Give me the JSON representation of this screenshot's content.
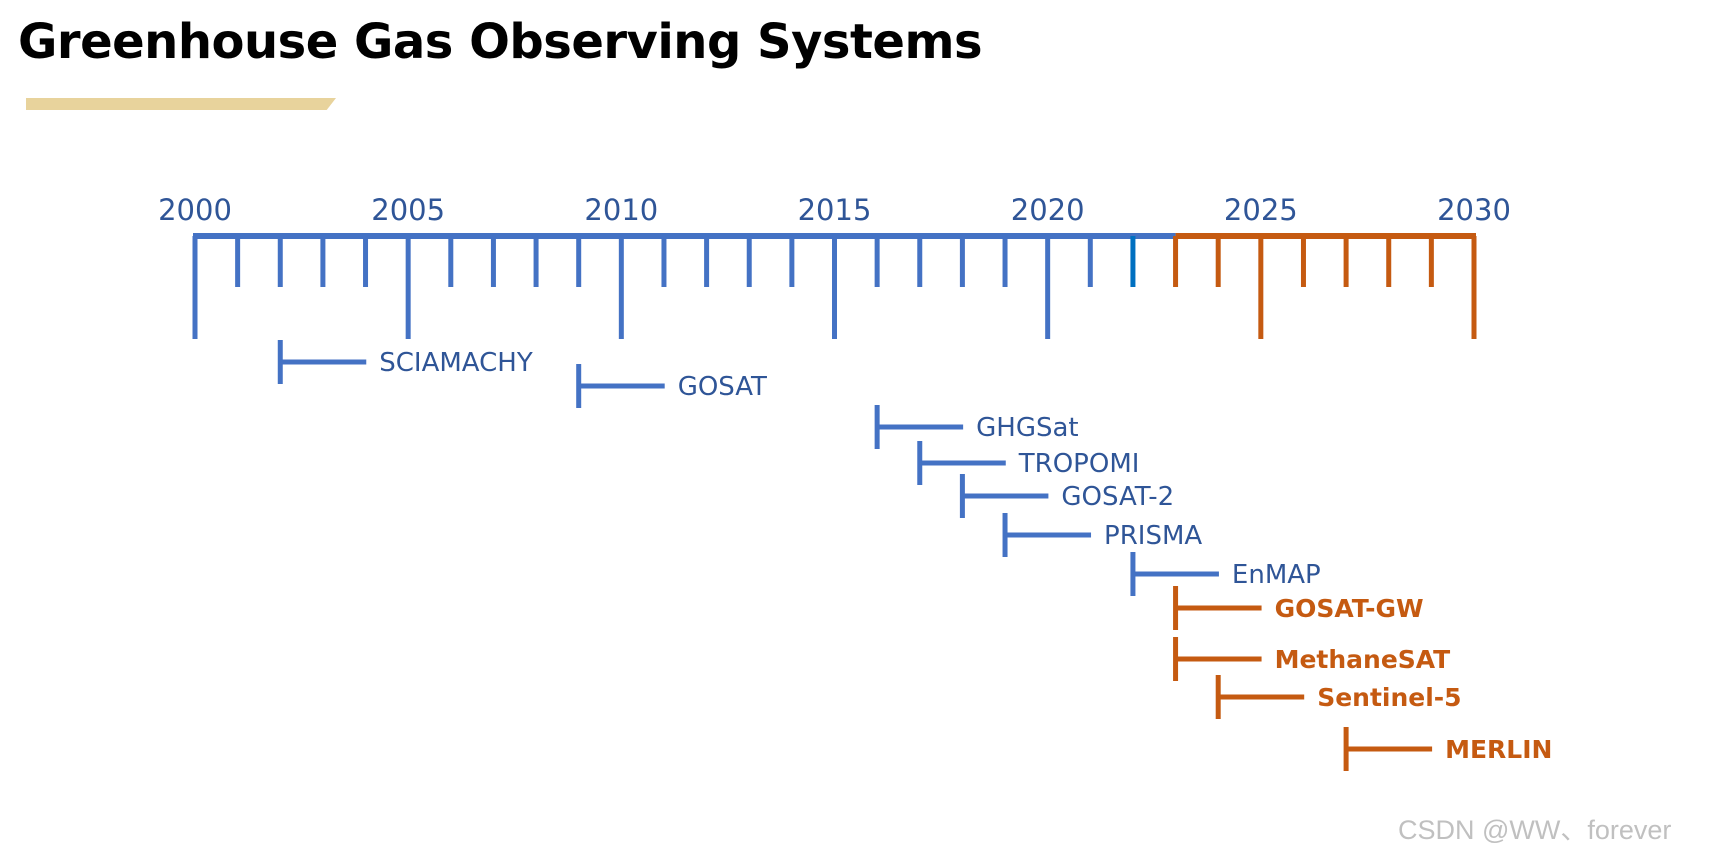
{
  "title": "Greenhouse Gas Observing Systems",
  "watermark": "CSDN @WW、forever",
  "colors": {
    "past": "#4472c4",
    "future": "#c55a11",
    "current_tick": "#0070c0",
    "title_underline": "#e8d39c"
  },
  "axis": {
    "start_year": 2000,
    "end_year": 2030,
    "future_from_year": 2023,
    "major_labels": [
      "2000",
      "2005",
      "2010",
      "2015",
      "2020",
      "2025",
      "2030"
    ],
    "current_year": 2022
  },
  "missions": [
    {
      "name": "SCIAMACHY",
      "start_year": 2002,
      "status": "past"
    },
    {
      "name": "GOSAT",
      "start_year": 2009,
      "status": "past"
    },
    {
      "name": "GHGSat",
      "start_year": 2016,
      "status": "past"
    },
    {
      "name": "TROPOMI",
      "start_year": 2017,
      "status": "past"
    },
    {
      "name": "GOSAT-2",
      "start_year": 2018,
      "status": "past"
    },
    {
      "name": "PRISMA",
      "start_year": 2019,
      "status": "past"
    },
    {
      "name": "EnMAP",
      "start_year": 2022,
      "status": "past"
    },
    {
      "name": "GOSAT-GW",
      "start_year": 2023,
      "status": "future"
    },
    {
      "name": "MethaneSAT",
      "start_year": 2023,
      "status": "future"
    },
    {
      "name": "Sentinel-5",
      "start_year": 2024,
      "status": "future"
    },
    {
      "name": "MERLIN",
      "start_year": 2027,
      "status": "future"
    }
  ]
}
